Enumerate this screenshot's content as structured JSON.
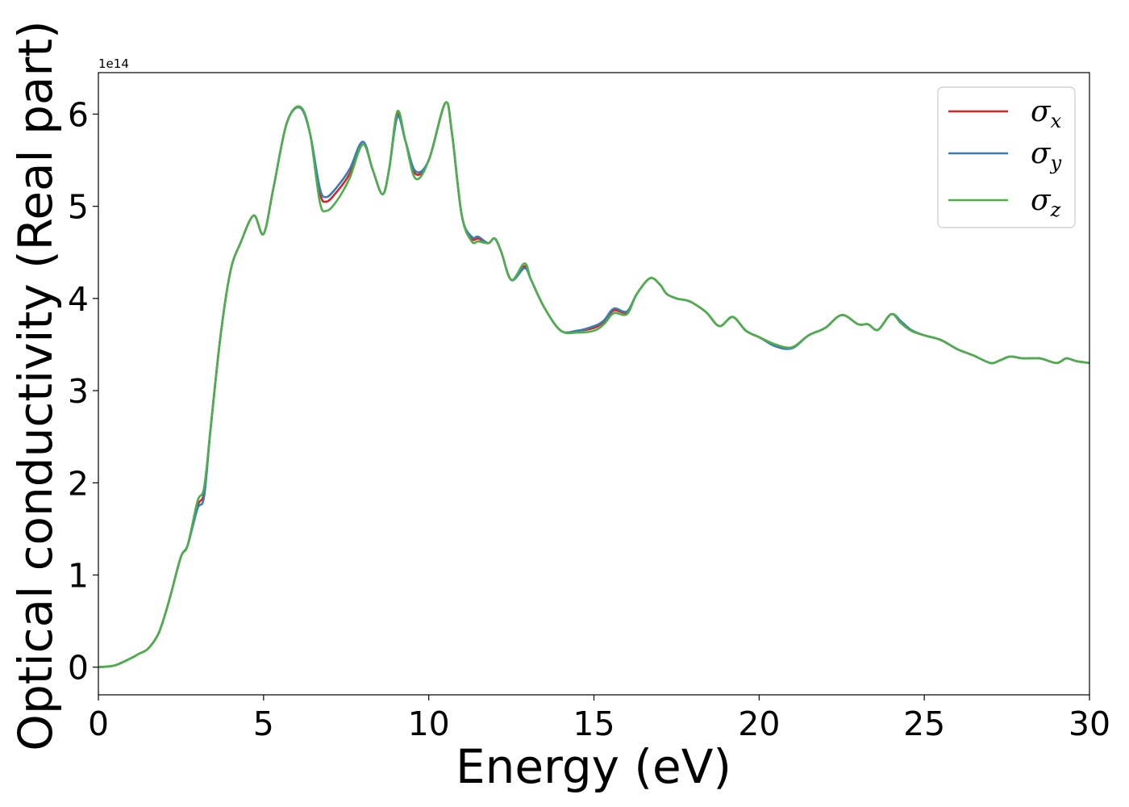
{
  "chart_data": {
    "type": "line",
    "xlabel": "Energy (eV)",
    "ylabel": "Optical conductivity (Real part)",
    "y_offset_label": "1e14",
    "xlim": [
      0,
      30
    ],
    "ylim": [
      -0.3,
      6.45
    ],
    "x_ticks": [
      0,
      5,
      10,
      15,
      20,
      25,
      30
    ],
    "x_tick_labels": [
      "0",
      "5",
      "10",
      "15",
      "20",
      "25",
      "30"
    ],
    "y_ticks": [
      0,
      1,
      2,
      3,
      4,
      5,
      6
    ],
    "y_tick_labels": [
      "0",
      "1",
      "2",
      "3",
      "4",
      "5",
      "6"
    ],
    "grid": false,
    "legend_position": "top-right",
    "x": [
      0,
      0.5,
      1.0,
      1.2,
      1.5,
      1.8,
      2.0,
      2.2,
      2.5,
      2.7,
      3.0,
      3.2,
      3.4,
      3.7,
      4.0,
      4.3,
      4.7,
      5.0,
      5.3,
      5.7,
      6.1,
      6.4,
      6.7,
      6.9,
      7.2,
      7.6,
      8.0,
      8.3,
      8.6,
      8.8,
      9.05,
      9.3,
      9.6,
      10.0,
      10.5,
      10.7,
      11.0,
      11.3,
      11.5,
      11.8,
      12.0,
      12.2,
      12.5,
      12.9,
      13.1,
      13.5,
      14.0,
      14.5,
      15.0,
      15.3,
      15.6,
      16.0,
      16.3,
      16.7,
      17.0,
      17.2,
      17.5,
      17.8,
      18.0,
      18.4,
      18.8,
      19.2,
      19.6,
      20.0,
      20.5,
      21.0,
      21.5,
      22.0,
      22.5,
      23.0,
      23.3,
      23.6,
      24.0,
      24.3,
      24.6,
      25.0,
      25.5,
      26.0,
      26.5,
      27.0,
      27.3,
      27.6,
      28.0,
      28.5,
      29.0,
      29.3,
      29.6,
      30.0
    ],
    "series": [
      {
        "name": "σx",
        "color": "#d62728",
        "values": [
          0,
          0.02,
          0.1,
          0.14,
          0.2,
          0.35,
          0.55,
          0.8,
          1.2,
          1.32,
          1.75,
          1.9,
          2.6,
          3.6,
          4.3,
          4.6,
          4.9,
          4.7,
          5.2,
          5.9,
          6.08,
          5.8,
          5.15,
          5.05,
          5.15,
          5.35,
          5.7,
          5.4,
          5.13,
          5.4,
          6.0,
          5.7,
          5.35,
          5.5,
          6.12,
          5.8,
          4.9,
          4.65,
          4.65,
          4.6,
          4.65,
          4.5,
          4.2,
          4.35,
          4.2,
          3.9,
          3.65,
          3.65,
          3.68,
          3.75,
          3.87,
          3.85,
          4.05,
          4.22,
          4.15,
          4.05,
          4.0,
          3.98,
          3.95,
          3.85,
          3.7,
          3.8,
          3.65,
          3.58,
          3.5,
          3.47,
          3.6,
          3.68,
          3.82,
          3.72,
          3.72,
          3.66,
          3.83,
          3.73,
          3.65,
          3.6,
          3.55,
          3.45,
          3.38,
          3.3,
          3.33,
          3.37,
          3.35,
          3.35,
          3.3,
          3.35,
          3.32,
          3.3
        ]
      },
      {
        "name": "σy",
        "color": "#377eb8",
        "values": [
          0,
          0.02,
          0.1,
          0.14,
          0.2,
          0.35,
          0.55,
          0.8,
          1.2,
          1.32,
          1.72,
          1.85,
          2.6,
          3.6,
          4.3,
          4.6,
          4.9,
          4.7,
          5.2,
          5.9,
          6.07,
          5.8,
          5.2,
          5.1,
          5.2,
          5.4,
          5.7,
          5.4,
          5.13,
          5.4,
          5.97,
          5.7,
          5.38,
          5.5,
          6.12,
          5.8,
          4.9,
          4.67,
          4.67,
          4.6,
          4.65,
          4.5,
          4.2,
          4.33,
          4.2,
          3.9,
          3.65,
          3.65,
          3.7,
          3.76,
          3.89,
          3.86,
          4.05,
          4.22,
          4.15,
          4.05,
          4.0,
          3.98,
          3.95,
          3.85,
          3.7,
          3.8,
          3.65,
          3.58,
          3.48,
          3.46,
          3.6,
          3.68,
          3.82,
          3.72,
          3.72,
          3.66,
          3.83,
          3.75,
          3.66,
          3.6,
          3.55,
          3.45,
          3.38,
          3.3,
          3.33,
          3.37,
          3.35,
          3.35,
          3.3,
          3.35,
          3.32,
          3.3
        ]
      },
      {
        "name": "σz",
        "color": "#4daf4a",
        "values": [
          0,
          0.02,
          0.1,
          0.14,
          0.2,
          0.35,
          0.55,
          0.8,
          1.2,
          1.32,
          1.8,
          1.95,
          2.6,
          3.6,
          4.3,
          4.6,
          4.9,
          4.7,
          5.2,
          5.9,
          6.08,
          5.8,
          5.05,
          4.95,
          5.05,
          5.3,
          5.67,
          5.4,
          5.13,
          5.4,
          6.03,
          5.7,
          5.3,
          5.5,
          6.12,
          5.8,
          4.9,
          4.62,
          4.62,
          4.6,
          4.65,
          4.5,
          4.2,
          4.38,
          4.2,
          3.9,
          3.65,
          3.63,
          3.65,
          3.72,
          3.84,
          3.83,
          4.05,
          4.22,
          4.15,
          4.05,
          4.0,
          3.98,
          3.95,
          3.85,
          3.7,
          3.8,
          3.65,
          3.58,
          3.5,
          3.47,
          3.6,
          3.68,
          3.82,
          3.72,
          3.72,
          3.66,
          3.83,
          3.73,
          3.65,
          3.6,
          3.55,
          3.45,
          3.38,
          3.3,
          3.33,
          3.37,
          3.35,
          3.35,
          3.3,
          3.35,
          3.32,
          3.3
        ]
      }
    ]
  }
}
